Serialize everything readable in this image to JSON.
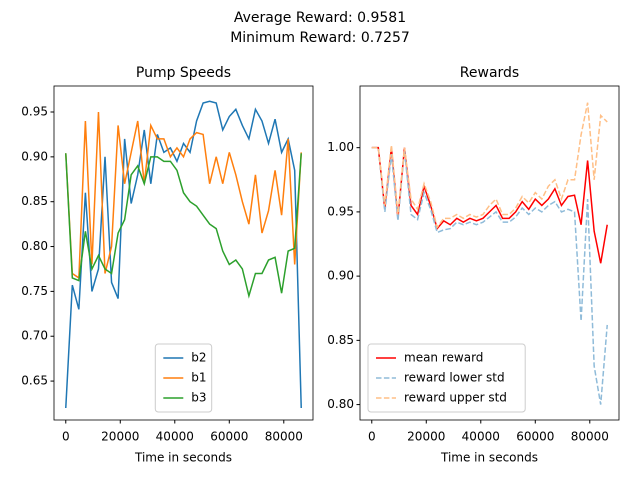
{
  "suptitle": [
    "Average Reward: 0.9581",
    "Minimum Reward: 0.7257"
  ],
  "chart_data": [
    {
      "type": "line",
      "title": "Pump Speeds",
      "xlabel": "Time in seconds",
      "x": [
        0,
        2400,
        4800,
        7200,
        9600,
        12000,
        14400,
        16800,
        19200,
        21600,
        24000,
        26400,
        28800,
        31200,
        33600,
        36000,
        38400,
        40800,
        43200,
        45600,
        48000,
        50400,
        52800,
        55200,
        57600,
        60000,
        62400,
        64800,
        67200,
        69600,
        72000,
        74400,
        76800,
        79200,
        81600,
        84000,
        86400
      ],
      "xlim": [
        -4320,
        90720
      ],
      "xticks": [
        0,
        20000,
        40000,
        60000,
        80000
      ],
      "ylim": [
        0.6066,
        0.979
      ],
      "yticks": [
        0.65,
        {
          "value": 0.7,
          "label": "0.70"
        },
        0.75,
        {
          "value": 0.8,
          "label": "0.80"
        },
        0.85,
        {
          "value": 0.9,
          "label": "0.90"
        },
        0.95
      ],
      "legend": "lower center",
      "series": [
        {
          "name": "b2",
          "color": "#1f77b4",
          "values": [
            0.62,
            0.757,
            0.73,
            0.86,
            0.75,
            0.775,
            0.9,
            0.76,
            0.742,
            0.92,
            0.848,
            0.88,
            0.93,
            0.87,
            0.925,
            0.905,
            0.91,
            0.895,
            0.915,
            0.905,
            0.94,
            0.96,
            0.962,
            0.96,
            0.93,
            0.945,
            0.953,
            0.935,
            0.92,
            0.953,
            0.94,
            0.915,
            0.942,
            0.905,
            0.92,
            0.885,
            0.62
          ]
        },
        {
          "name": "b1",
          "color": "#ff7f0e",
          "values": [
            0.904,
            0.77,
            0.765,
            0.94,
            0.78,
            0.95,
            0.77,
            0.8,
            0.935,
            0.87,
            0.905,
            0.94,
            0.87,
            0.935,
            0.92,
            0.92,
            0.9,
            0.91,
            0.9,
            0.92,
            0.927,
            0.925,
            0.87,
            0.9,
            0.87,
            0.905,
            0.88,
            0.85,
            0.825,
            0.88,
            0.815,
            0.84,
            0.885,
            0.835,
            0.92,
            0.78,
            0.905
          ]
        },
        {
          "name": "b3",
          "color": "#2ca02c",
          "values": [
            0.904,
            0.765,
            0.762,
            0.817,
            0.775,
            0.79,
            0.775,
            0.77,
            0.815,
            0.83,
            0.88,
            0.89,
            0.87,
            0.9,
            0.9,
            0.895,
            0.895,
            0.885,
            0.86,
            0.85,
            0.845,
            0.835,
            0.825,
            0.82,
            0.795,
            0.78,
            0.785,
            0.775,
            0.745,
            0.77,
            0.77,
            0.785,
            0.788,
            0.748,
            0.795,
            0.798,
            0.904
          ]
        }
      ]
    },
    {
      "type": "line",
      "title": "Rewards",
      "xlabel": "Time in seconds",
      "x": [
        0,
        2400,
        4800,
        7200,
        9600,
        12000,
        14400,
        16800,
        19200,
        21600,
        24000,
        26400,
        28800,
        31200,
        33600,
        36000,
        38400,
        40800,
        43200,
        45600,
        48000,
        50400,
        52800,
        55200,
        57600,
        60000,
        62400,
        64800,
        67200,
        69600,
        72000,
        74400,
        76800,
        79200,
        81600,
        84000,
        86400
      ],
      "xlim": [
        -4320,
        90720
      ],
      "xticks": [
        0,
        20000,
        40000,
        60000,
        80000
      ],
      "ylim": [
        0.788,
        1.048
      ],
      "yticks": [
        {
          "value": 0.8,
          "label": "0.80"
        },
        0.85,
        {
          "value": 0.9,
          "label": "0.90"
        },
        0.95,
        {
          "value": 1.0,
          "label": "1.00"
        }
      ],
      "legend": "lower left",
      "series": [
        {
          "name": "mean reward",
          "color": "#ff0000",
          "dashed": false,
          "values": [
            1.0,
            1.0,
            0.952,
            1.0,
            0.945,
            1.0,
            0.955,
            0.948,
            0.97,
            0.955,
            0.937,
            0.943,
            0.94,
            0.945,
            0.942,
            0.945,
            0.943,
            0.945,
            0.95,
            0.955,
            0.945,
            0.945,
            0.95,
            0.958,
            0.952,
            0.96,
            0.955,
            0.96,
            0.968,
            0.955,
            0.962,
            0.963,
            0.94,
            0.99,
            0.935,
            0.91,
            0.94
          ]
        },
        {
          "name": "reward lower std",
          "color": "#8fbbd9",
          "dashed": true,
          "values": [
            1.0,
            1.0,
            0.95,
            0.995,
            0.943,
            0.998,
            0.948,
            0.944,
            0.965,
            0.952,
            0.934,
            0.936,
            0.937,
            0.942,
            0.94,
            0.942,
            0.94,
            0.942,
            0.946,
            0.95,
            0.942,
            0.942,
            0.946,
            0.953,
            0.948,
            0.953,
            0.95,
            0.955,
            0.958,
            0.95,
            0.952,
            0.95,
            0.865,
            0.96,
            0.83,
            0.8,
            0.862
          ]
        },
        {
          "name": "reward upper std",
          "color": "#ffbf86",
          "dashed": true,
          "values": [
            1.0,
            1.0,
            0.955,
            1.002,
            0.948,
            1.0,
            0.96,
            0.952,
            0.972,
            0.958,
            0.938,
            0.945,
            0.945,
            0.948,
            0.945,
            0.948,
            0.946,
            0.948,
            0.955,
            0.96,
            0.948,
            0.948,
            0.953,
            0.962,
            0.957,
            0.965,
            0.96,
            0.97,
            0.975,
            0.96,
            0.975,
            0.975,
            1.01,
            1.035,
            0.975,
            1.025,
            1.02
          ]
        }
      ]
    }
  ]
}
